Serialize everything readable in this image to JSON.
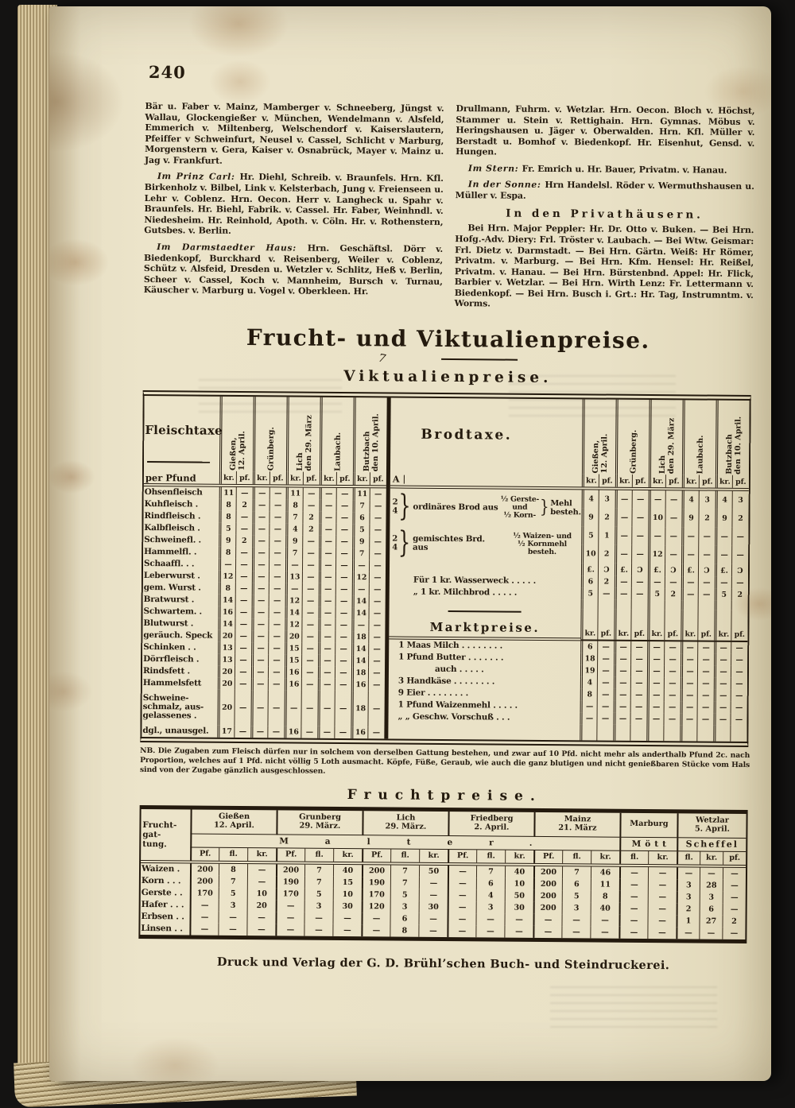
{
  "page": {
    "number": "240"
  },
  "body": {
    "left": [
      {
        "lead": "",
        "text": "Bär u. Faber v. Mainz, Mamberger v. Schneeberg, Jüngst v. Wallau, Glockengießer v. München, Wendelmann v. Alsfeld, Emmerich v. Miltenberg, Welschendorf v. Kaiserslautern, Pfeiffer v Schweinfurt, Neusel v. Cassel, Schlicht v Marburg, Morgenstern v. Gera, Kaiser v. Osnabrück, Mayer v. Mainz u. Jag v. Frankfurt."
      },
      {
        "lead": "Im Prinz Carl:",
        "text": "Hr. Diehl, Schreib. v. Braunfels. Hrn. Kfl. Birkenholz v. Bilbel, Link v. Kelsterbach, Jung v. Freienseen u. Lehr v. Coblenz. Hrn. Oecon. Herr v. Langheck u. Spahr v. Braunfels. Hr. Biehl, Fabrik. v. Cassel. Hr. Faber, Weinhndl. v. Niedesheim. Hr. Reinhold, Apoth. v. Cöln. Hr. v. Rothenstern, Gutsbes. v. Berlin."
      },
      {
        "lead": "Im Darmstaedter Haus:",
        "text": "Hrn. Geschäftsl. Dörr v. Biedenkopf, Burckhard v. Reisenberg, Weiler v. Coblenz, Schütz v. Alsfeid, Dresden u. Wetzler v. Schlitz, Heß v. Berlin, Scheer v. Cassel, Koch v. Mannheim, Bursch v. Turnau, Käuscher v. Marburg u. Vogel v. Oberkleen. Hr."
      }
    ],
    "right": [
      {
        "lead": "",
        "text": "Drullmann, Fuhrm. v. Wetzlar. Hrn. Oecon. Bloch v. Höchst, Stammer u. Stein v. Rettighain. Hrn. Gymnas. Möbus v. Heringshausen u. Jäger v. Oberwalden. Hrn. Kfl. Müller v. Berstadt u. Bomhof v. Biedenkopf. Hr. Eisenhut, Gensd. v. Hungen."
      },
      {
        "lead": "Im Stern:",
        "text": "Fr. Emrich u. Hr. Bauer, Privatm. v. Hanau."
      },
      {
        "lead": "In der Sonne:",
        "text": "Hrn Handelsl. Röder v. Wermuthshausen u. Müller v. Espa."
      }
    ],
    "privat_heading": "In den Privathäusern.",
    "privat_text": "Bei Hrn. Major Peppler: Hr. Dr. Otto v. Buken. — Bei Hrn. Hofg.-Adv. Diery: Frl. Tröster v. Laubach. — Bei Wtw. Geismar: Frl. Dietz v. Darmstadt. — Bei Hrn. Gärtn. Weiß: Hr Römer, Privatm. v. Marburg. — Bei Hrn. Kfm. Hensel: Hr. Reißel, Privatm. v. Hanau. — Bei Hrn. Bürstenbnd. Appel: Hr. Flick, Barbier v. Wetzlar. — Bei Hrn. Wirth Lenz: Fr. Lettermann v. Biedenkopf. — Bei Hrn. Busch i. Grt.: Hr. Tag, Instrumntm. v. Worms."
  },
  "masthead": {
    "title": "Frucht- und Viktualienpreise.",
    "ornament": "7",
    "subtitle": "Viktualienpreise."
  },
  "viktualien": {
    "cities": [
      [
        "Gießen,",
        "12. April."
      ],
      [
        "Grünberg.",
        ""
      ],
      [
        "Lich",
        "den 29. März"
      ],
      [
        "Laubach.",
        ""
      ],
      [
        "Butzbach",
        "den 10. April."
      ]
    ],
    "unit_kr": "kr.",
    "unit_pf": "pf.",
    "fleisch": {
      "title": "Fleischtaxe",
      "per": "per Pfund",
      "rows": [
        {
          "label": "Ohsenfleisch",
          "v": [
            "11",
            "—",
            "—",
            "—",
            "11",
            "—",
            "—",
            "—",
            "11",
            "—"
          ]
        },
        {
          "label": "Kuhfleisch .",
          "v": [
            "8",
            "2",
            "—",
            "—",
            "8",
            "—",
            "—",
            "—",
            "7",
            "—"
          ]
        },
        {
          "label": "Rindfleisch .",
          "v": [
            "8",
            "—",
            "—",
            "—",
            "7",
            "2",
            "—",
            "—",
            "6",
            "—"
          ]
        },
        {
          "label": "Kalbfleisch .",
          "v": [
            "5",
            "—",
            "—",
            "—",
            "4",
            "2",
            "—",
            "—",
            "5",
            "—"
          ]
        },
        {
          "label": "Schweinefl. .",
          "v": [
            "9",
            "2",
            "—",
            "—",
            "9",
            "—",
            "—",
            "—",
            "9",
            "—"
          ]
        },
        {
          "label": "Hammelfl. .",
          "v": [
            "8",
            "—",
            "—",
            "—",
            "7",
            "—",
            "—",
            "—",
            "7",
            "—"
          ]
        },
        {
          "label": "Schaaffl. . .",
          "v": [
            "—",
            "—",
            "—",
            "—",
            "—",
            "—",
            "—",
            "—",
            "—",
            "—"
          ]
        },
        {
          "label": "Leberwurst .",
          "v": [
            "12",
            "—",
            "—",
            "—",
            "13",
            "—",
            "—",
            "—",
            "12",
            "—"
          ]
        },
        {
          "label": "gem. Wurst .",
          "v": [
            "8",
            "—",
            "—",
            "—",
            "—",
            "—",
            "—",
            "—",
            "—",
            "—"
          ]
        },
        {
          "label": "Bratwurst .",
          "v": [
            "14",
            "—",
            "—",
            "—",
            "12",
            "—",
            "—",
            "—",
            "14",
            "—"
          ]
        },
        {
          "label": "Schwartem. .",
          "v": [
            "16",
            "—",
            "—",
            "—",
            "14",
            "—",
            "—",
            "—",
            "14",
            "—"
          ]
        },
        {
          "label": "Blutwurst .",
          "v": [
            "14",
            "—",
            "—",
            "—",
            "12",
            "—",
            "—",
            "—",
            "—",
            "—"
          ]
        },
        {
          "label": "geräuch. Speck",
          "v": [
            "20",
            "—",
            "—",
            "—",
            "20",
            "—",
            "—",
            "—",
            "18",
            "—"
          ]
        },
        {
          "label": "Schinken . .",
          "v": [
            "13",
            "—",
            "—",
            "—",
            "15",
            "—",
            "—",
            "—",
            "14",
            "—"
          ]
        },
        {
          "label": "Dörrfleisch .",
          "v": [
            "13",
            "—",
            "—",
            "—",
            "15",
            "—",
            "—",
            "—",
            "14",
            "—"
          ]
        },
        {
          "label": "Rindsfett .",
          "v": [
            "20",
            "—",
            "—",
            "—",
            "16",
            "—",
            "—",
            "—",
            "18",
            "—"
          ]
        },
        {
          "label": "Hammelsfett",
          "v": [
            "20",
            "—",
            "—",
            "—",
            "16",
            "—",
            "—",
            "—",
            "16",
            "—"
          ]
        },
        {
          "label": [
            "Schweine-",
            "schmalz, aus-",
            "gelassenes ."
          ],
          "h": 45,
          "v": [
            "20",
            "—",
            "—",
            "—",
            "—",
            "—",
            "—",
            "—",
            "18",
            "—"
          ]
        },
        {
          "label": "dgl., unausgel.",
          "v": [
            "17",
            "—",
            "—",
            "—",
            "16",
            "—",
            "—",
            "—",
            "16",
            "—"
          ]
        }
      ]
    },
    "brod": {
      "title": "Brodtaxe.",
      "corner": "A",
      "groups": [
        {
          "brace": [
            "2",
            "4"
          ],
          "pre": "ordinäres Brod aus",
          "mid": [
            "½ Gerste-",
            "und",
            "½ Korn-"
          ],
          "post": [
            "Mehl",
            "besteh."
          ],
          "lines": [
            [
              "4",
              "3",
              "—",
              "—",
              "—",
              "—",
              "4",
              "3",
              "4",
              "3"
            ],
            [
              "9",
              "2",
              "—",
              "—",
              "10",
              "—",
              "9",
              "2",
              "9",
              "2"
            ]
          ]
        },
        {
          "brace": [
            "2",
            "4"
          ],
          "pre": "gemischtes Brd. aus",
          "mid": [
            "½ Waizen- und",
            "½ Kornmehl besteh."
          ],
          "post": [],
          "lines": [
            [
              "5",
              "1",
              "—",
              "—",
              "—",
              "—",
              "—",
              "—",
              "—",
              "—"
            ],
            [
              "10",
              "2",
              "—",
              "—",
              "12",
              "—",
              "—",
              "—",
              "—",
              "—"
            ]
          ]
        }
      ],
      "unit_lb": "£.",
      "unit_q": "Ɔ",
      "weck_rows": [
        {
          "label": "Für 1 kr. Wasserweck . . . . .",
          "v": [
            "6",
            "2",
            "—",
            "—",
            "—",
            "—",
            "—",
            "—",
            "—",
            "—"
          ]
        },
        {
          "label": "„  1 kr. Milchbrod . . . . .",
          "v": [
            "5",
            "—",
            "—",
            "—",
            "5",
            "2",
            "—",
            "—",
            "5",
            "2"
          ]
        }
      ]
    },
    "markt": {
      "title": "Marktpreise.",
      "rows": [
        {
          "label": "1 Maas Milch . . . . . . . .",
          "v": [
            "6",
            "—",
            "—",
            "—",
            "—",
            "—",
            "—",
            "—",
            "—",
            "—"
          ]
        },
        {
          "label": "1 Pfund Butter . . . . . . .",
          "v": [
            "18",
            "—",
            "—",
            "—",
            "—",
            "—",
            "—",
            "—",
            "—",
            "—"
          ]
        },
        {
          "label": "auch . . . . .",
          "indent": true,
          "v": [
            "19",
            "—",
            "—",
            "—",
            "—",
            "—",
            "—",
            "—",
            "—",
            "—"
          ]
        },
        {
          "label": "3 Handkäse . . . . . . . .",
          "v": [
            "4",
            "—",
            "—",
            "—",
            "—",
            "—",
            "—",
            "—",
            "—",
            "—"
          ]
        },
        {
          "label": "9 Eier . . . . . . . .",
          "v": [
            "8",
            "—",
            "—",
            "—",
            "—",
            "—",
            "—",
            "—",
            "—",
            "—"
          ]
        },
        {
          "label": "1 Pfund Waizenmehl . . . . .",
          "v": [
            "—",
            "—",
            "—",
            "—",
            "—",
            "—",
            "—",
            "—",
            "—",
            "—"
          ]
        },
        {
          "label": "„   „   Geschw. Vorschuß . . .",
          "v": [
            "—",
            "—",
            "—",
            "—",
            "—",
            "—",
            "—",
            "—",
            "—",
            "—"
          ]
        }
      ]
    },
    "nb": "NB. Die Zugaben zum Fleisch dürfen nur in solchem von derselben Gattung bestehen, und zwar auf 10 Pfd. nicht mehr als anderthalb Pfund 2c. nach Proportion, welches auf 1 Pfd. nicht völlig 5 Loth ausmacht. Köpfe, Füße, Geraub, wie auch die ganz blutigen und nicht genießbaren Stücke vom Hals sind von der Zugabe gänzlich ausgeschlossen."
  },
  "frucht": {
    "title": "Fruchtpreise.",
    "label_col": [
      "Frucht-",
      "gat-",
      "tung."
    ],
    "measure_band": "Malter.",
    "groups": [
      {
        "name": "Gießen",
        "date": "12. April."
      },
      {
        "name": "Grunberg",
        "date": "29. März."
      },
      {
        "name": "Lich",
        "date": "29. März."
      },
      {
        "name": "Friedberg",
        "date": "2. April."
      },
      {
        "name": "Mainz",
        "date": "21. März"
      }
    ],
    "units3": [
      "Pf.",
      "fl.",
      "kr."
    ],
    "marburg": {
      "name": "Marburg",
      "measure": "Mött",
      "units": [
        "fl.",
        "kr."
      ]
    },
    "wetzlar": {
      "name": "Wetzlar",
      "date": "5. April.",
      "measure": "Scheffel",
      "units": [
        "fl.",
        "kr.",
        "pf."
      ]
    },
    "rows": [
      {
        "label": "Waizen .",
        "v": [
          "200",
          "8",
          "—",
          "200",
          "7",
          "40",
          "200",
          "7",
          "50",
          "—",
          "7",
          "40",
          "200",
          "7",
          "46",
          "—",
          "—",
          "—",
          "—",
          "—"
        ]
      },
      {
        "label": "Korn . . .",
        "v": [
          "200",
          "7",
          "—",
          "190",
          "7",
          "15",
          "190",
          "7",
          "—",
          "—",
          "6",
          "10",
          "200",
          "6",
          "11",
          "—",
          "—",
          "3",
          "28",
          "—"
        ]
      },
      {
        "label": "Gerste . .",
        "v": [
          "170",
          "5",
          "10",
          "170",
          "5",
          "10",
          "170",
          "5",
          "—",
          "—",
          "4",
          "50",
          "200",
          "5",
          "8",
          "—",
          "—",
          "3",
          "3",
          "—"
        ]
      },
      {
        "label": "Hafer . . .",
        "v": [
          "—",
          "3",
          "20",
          "—",
          "3",
          "30",
          "120",
          "3",
          "30",
          "—",
          "3",
          "30",
          "200",
          "3",
          "40",
          "—",
          "—",
          "2",
          "6",
          "—"
        ]
      },
      {
        "label": "Erbsen . .",
        "v": [
          "—",
          "—",
          "—",
          "—",
          "—",
          "—",
          "—",
          "6",
          "—",
          "—",
          "—",
          "—",
          "—",
          "—",
          "—",
          "—",
          "—",
          "1",
          "27",
          "2"
        ]
      },
      {
        "label": "Linsen . .",
        "v": [
          "—",
          "—",
          "—",
          "—",
          "—",
          "—",
          "—",
          "8",
          "—",
          "—",
          "—",
          "—",
          "—",
          "—",
          "—",
          "—",
          "—",
          "—",
          "—",
          "—"
        ]
      }
    ]
  },
  "footer": "Druck und Verlag der G. D. Brühl’schen Buch- und Steindruckerei."
}
